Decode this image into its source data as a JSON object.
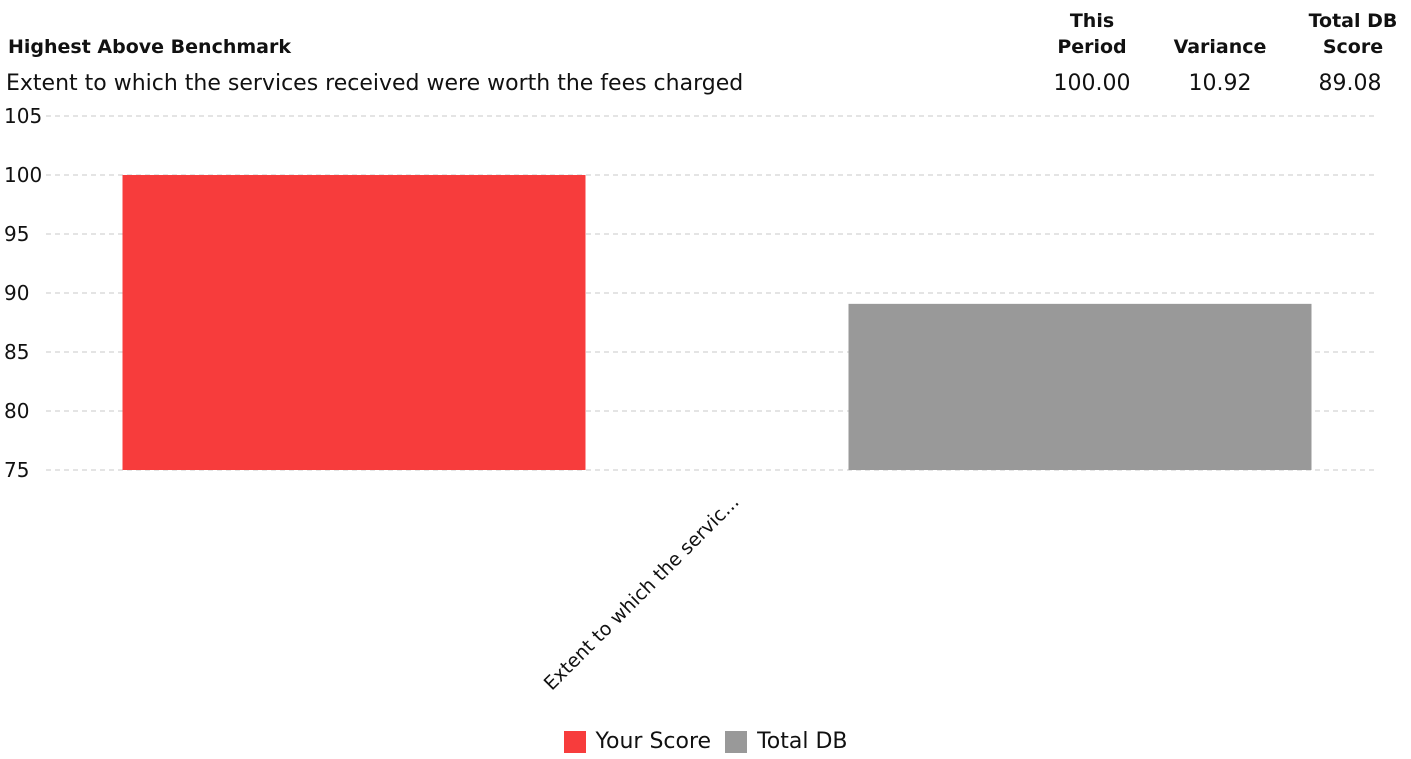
{
  "header": {
    "title": "Highest Above Benchmark",
    "question": "Extent to which the services received were worth the fees charged",
    "columns": [
      {
        "label_line1": "This",
        "label_line2": "Period",
        "value": "100.00"
      },
      {
        "label_line1": "",
        "label_line2": "Variance",
        "value": "10.92"
      },
      {
        "label_line1": "Total DB",
        "label_line2": "Score",
        "value": "89.08"
      }
    ]
  },
  "chart_data": {
    "type": "bar",
    "categories": [
      "Extent to which the servic..."
    ],
    "series": [
      {
        "name": "Your Score",
        "color": "#f73c3c",
        "values": [
          100.0
        ]
      },
      {
        "name": "Total DB",
        "color": "#999999",
        "values": [
          89.08
        ]
      }
    ],
    "ylim": [
      75,
      105
    ],
    "yticks": [
      75,
      80,
      85,
      90,
      95,
      100,
      105
    ],
    "grid": true,
    "legend_position": "bottom"
  }
}
